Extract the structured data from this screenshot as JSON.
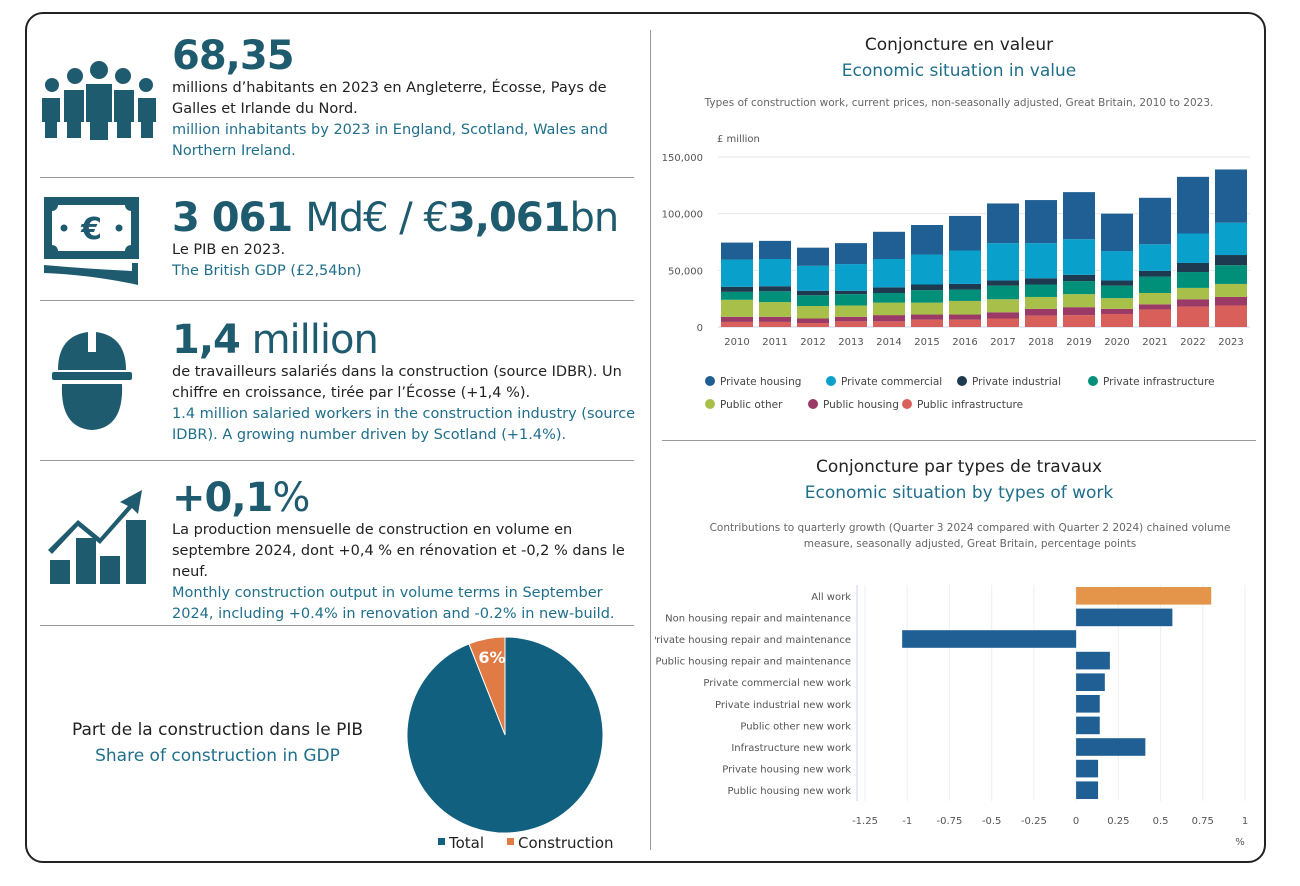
{
  "stats": [
    {
      "value": "68,35",
      "fr": "millions d’habitants en 2023 en Angleterre, Écosse, Pays de Galles et Irlande du Nord.",
      "en": "million inhabitants by 2023 in England, Scotland, Wales and Northern Ireland.",
      "icon": "people-group-icon"
    },
    {
      "value_bold1": "3 061",
      "value_thin1": "Md€ / €",
      "value_bold2": "3,061",
      "value_thin2": "bn",
      "fr": "Le PIB en 2023.",
      "en": "The British GDP (£2,54bn)",
      "icon": "banknote-euro-icon"
    },
    {
      "value_bold": "1,4",
      "value_thin": " million",
      "fr": "de travailleurs salariés dans la construction (source IDBR). Un chiffre en croissance, tirée par l’Écosse (+1,4 %).",
      "en": "1.4 million salaried workers in the construction industry (source IDBR). A growing number driven by Scotland (+1.4%).",
      "icon": "hard-hat-worker-icon"
    },
    {
      "value_bold": "+0,1",
      "value_thin": "%",
      "fr": "La production mensuelle de construction en volume en septembre 2024, dont +0,4 % en rénovation et -0,2 % dans le neuf.",
      "en": "Monthly construction output in volume terms in September 2024, including +0.4% in renovation and -0.2% in new-build.",
      "icon": "growth-chart-icon"
    }
  ],
  "colors": {
    "heading": "#1f5b6e",
    "english": "#1f6f8b"
  },
  "chart_data": [
    {
      "type": "pie",
      "title_fr": "Part de la construction dans le PIB",
      "title_en": "Share of construction in GDP",
      "slices": [
        {
          "name": "Total",
          "value": 94,
          "color": "#12607f"
        },
        {
          "name": "Construction",
          "value": 6,
          "color": "#e07b45"
        }
      ],
      "data_label": "6%",
      "legend": "bottom"
    },
    {
      "type": "bar",
      "stacked": true,
      "title_fr": "Conjoncture en valeur",
      "title_en": "Economic situation in value",
      "subtitle": "Types of construction work, current prices, non-seasonally adjusted, Great Britain, 2010 to 2023.",
      "ylabel": "£ million",
      "ylim": [
        0,
        150000
      ],
      "yticks": [
        "0",
        "50,000",
        "100,000",
        "150,000"
      ],
      "grid": true,
      "legend": "bottom",
      "categories": [
        "2010",
        "2011",
        "2012",
        "2013",
        "2014",
        "2015",
        "2016",
        "2017",
        "2018",
        "2019",
        "2020",
        "2021",
        "2022",
        "2023"
      ],
      "series": [
        {
          "name": "Public infrastructure",
          "color": "#d9605a",
          "values": [
            4500,
            4500,
            3500,
            5000,
            5000,
            6500,
            6500,
            7500,
            10000,
            10500,
            11500,
            15500,
            18000,
            19000
          ]
        },
        {
          "name": "Public housing",
          "color": "#9b3a66",
          "values": [
            4500,
            4500,
            4000,
            4000,
            5500,
            4500,
            4500,
            5500,
            6000,
            7000,
            4500,
            4500,
            6500,
            7500
          ]
        },
        {
          "name": "Public other",
          "color": "#a8c04a",
          "values": [
            15000,
            13000,
            11000,
            10000,
            11000,
            10500,
            12000,
            11500,
            10500,
            11500,
            9500,
            10000,
            10000,
            11500
          ]
        },
        {
          "name": "Private infrastructure",
          "color": "#009079",
          "values": [
            7000,
            9500,
            9500,
            10000,
            8500,
            11000,
            10000,
            12000,
            11000,
            11500,
            11000,
            14500,
            14000,
            16500
          ]
        },
        {
          "name": "Private industrial",
          "color": "#1e3a50",
          "values": [
            4500,
            4500,
            4000,
            3000,
            5000,
            5000,
            5000,
            4500,
            5500,
            5500,
            4500,
            5000,
            8000,
            9000
          ]
        },
        {
          "name": "Private commercial",
          "color": "#0aa0cc",
          "values": [
            24000,
            24000,
            22000,
            23500,
            25000,
            26500,
            29500,
            33000,
            31000,
            31500,
            26000,
            23500,
            26000,
            28500
          ]
        },
        {
          "name": "Private housing",
          "color": "#1f5f93",
          "values": [
            15000,
            16000,
            16000,
            18500,
            24000,
            26000,
            30500,
            35000,
            38000,
            41500,
            33000,
            41000,
            50000,
            47000
          ]
        }
      ],
      "legend_order": [
        "Private housing",
        "Private commercial",
        "Private industrial",
        "Private infrastructure",
        "Public other",
        "Public housing",
        "Public infrastructure"
      ]
    },
    {
      "type": "bar",
      "orientation": "horizontal",
      "title_fr": "Conjoncture par types de travaux",
      "title_en": "Economic situation by types of work",
      "subtitle": "Contributions to quarterly growth (Quarter 3 2024 compared with Quarter 2 2024) chained volume measure, seasonally adjusted, Great Britain, percentage points",
      "xlabel": "%",
      "xlim": [
        -1.25,
        1
      ],
      "xticks": [
        "-1.25",
        "-1",
        "-0.75",
        "-0.5",
        "-0.25",
        "0",
        "0.25",
        "0.5",
        "0.75",
        "1"
      ],
      "grid": true,
      "categories": [
        "All work",
        "Non housing repair and maintenance",
        "Private housing repair and maintenance",
        "Public housing repair and maintenance",
        "Private commercial new work",
        "Private industrial new work",
        "Public other new work",
        "Infrastructure new work",
        "Private housing new work",
        "Public housing new work"
      ],
      "values": [
        0.8,
        0.57,
        -1.03,
        0.2,
        0.17,
        0.14,
        0.14,
        0.41,
        0.13,
        0.13
      ],
      "colors": [
        "#e5954a",
        "#1f5f93",
        "#1f5f93",
        "#1f5f93",
        "#1f5f93",
        "#1f5f93",
        "#1f5f93",
        "#1f5f93",
        "#1f5f93",
        "#1f5f93"
      ]
    }
  ]
}
